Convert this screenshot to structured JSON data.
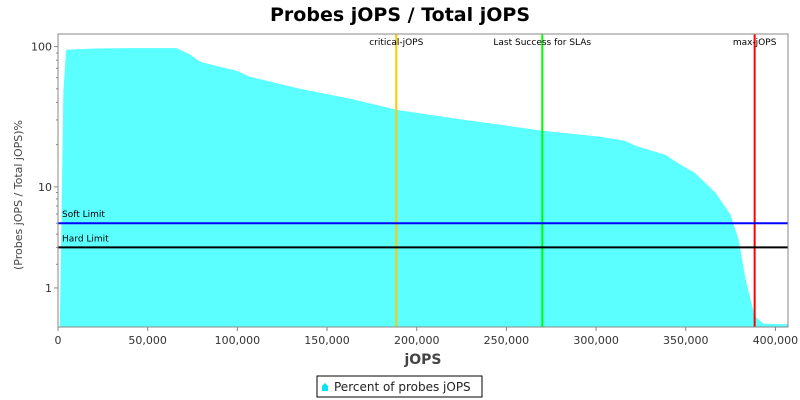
{
  "chart_data": {
    "type": "area",
    "title": "Probes jOPS / Total jOPS",
    "xlabel": "jOPS",
    "ylabel": "(Probes jOPS / Total jOPS)%",
    "xlim": [
      0,
      407000
    ],
    "ylim": [
      0,
      123
    ],
    "y_scale": "log",
    "x_ticks": [
      0,
      50000,
      100000,
      150000,
      200000,
      250000,
      300000,
      350000,
      400000
    ],
    "x_tick_labels": [
      "0",
      "50,000",
      "100,000",
      "150,000",
      "200,000",
      "250,000",
      "300,000",
      "350,000",
      "400,000"
    ],
    "y_ticks": [
      1,
      10,
      100
    ],
    "y_tick_labels": [
      "1",
      "10",
      "100"
    ],
    "grid": false,
    "legend_position": "bottom",
    "series": [
      {
        "name": "Percent of probes jOPS",
        "color": "#5cffff",
        "x": [
          1000,
          3000,
          4500,
          20000,
          40000,
          66000,
          73700,
          79200,
          90000,
          100000,
          107000,
          135000,
          163000,
          188600,
          218750,
          246650,
          270000,
          302000,
          316000,
          322000,
          338700,
          347000,
          355000,
          366600,
          375000,
          379500,
          383400,
          388400,
          393400,
          407000
        ],
        "y": [
          0,
          48,
          95,
          97,
          97.5,
          97.5,
          87.7,
          78,
          72,
          67,
          61,
          50,
          42.5,
          35.5,
          31,
          27.7,
          25.1,
          22.8,
          21.3,
          19.6,
          16.9,
          14.4,
          12.6,
          8.96,
          5.9,
          3.53,
          1.3,
          0.22,
          0.06,
          0.05
        ]
      }
    ],
    "markers": [
      {
        "label": "critical-jOPS",
        "x": 188600,
        "color": "#ffc800"
      },
      {
        "label": "Last Success for SLAs",
        "x": 270000,
        "color": "#00ff00"
      },
      {
        "label": "max-jOPS",
        "x": 388400,
        "color": "#ff0000"
      }
    ],
    "thresholds": [
      {
        "label": "Soft Limit",
        "y": 5,
        "color": "#0000ff"
      },
      {
        "label": "Hard Limit",
        "y": 3,
        "color": "#000000"
      }
    ]
  }
}
